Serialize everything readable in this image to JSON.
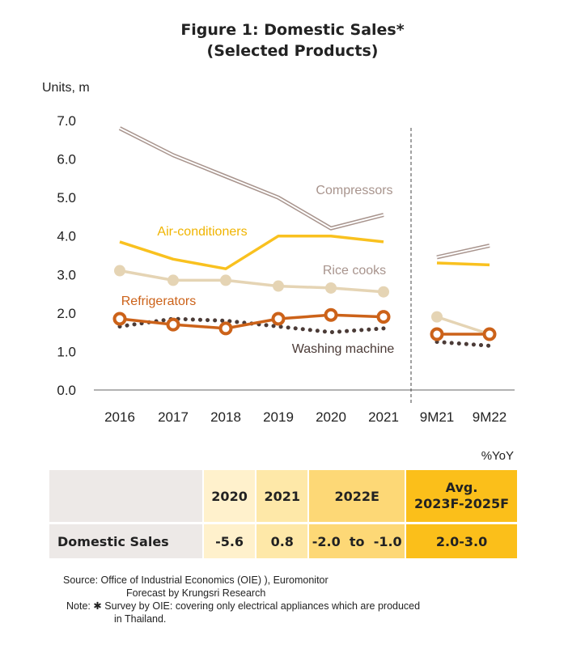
{
  "title_line1": "Figure 1: Domestic Sales*",
  "title_line2": "(Selected Products)",
  "colors": {
    "compressors": "#a8948d",
    "air_conditioners": "#f9c11f",
    "rice_cooks": "#e5d4b4",
    "refrigerators": "#cc6219",
    "washing_machine": "#4b3b37",
    "grid": "#555555"
  },
  "chart_data": {
    "type": "line",
    "ylabel": "Units, m",
    "ylim": [
      0,
      7
    ],
    "yticks": [
      "0.0",
      "1.0",
      "2.0",
      "3.0",
      "4.0",
      "5.0",
      "6.0",
      "7.0"
    ],
    "categories": [
      "2016",
      "2017",
      "2018",
      "2019",
      "2020",
      "2021",
      "9M21",
      "9M22"
    ],
    "series": [
      {
        "name": "Compressors",
        "values": [
          6.8,
          6.1,
          5.55,
          5.0,
          4.2,
          4.55,
          3.45,
          3.75
        ]
      },
      {
        "name": "Air-conditioners",
        "values": [
          3.85,
          3.4,
          3.15,
          4.0,
          4.0,
          3.85,
          3.3,
          3.25
        ]
      },
      {
        "name": "Rice cooks",
        "values": [
          3.1,
          2.85,
          2.85,
          2.7,
          2.65,
          2.55,
          1.9,
          1.45
        ]
      },
      {
        "name": "Refrigerators",
        "values": [
          1.85,
          1.7,
          1.6,
          1.85,
          1.95,
          1.9,
          1.45,
          1.45
        ]
      },
      {
        "name": "Washing machine",
        "values": [
          1.65,
          1.85,
          1.8,
          1.65,
          1.5,
          1.6,
          1.25,
          1.15
        ]
      }
    ]
  },
  "table": {
    "yoy_label": "%YoY",
    "headers": [
      "2020",
      "2021",
      "2022E",
      "Avg.",
      "2023F-2025F"
    ],
    "row_label": "Domestic Sales",
    "values": [
      "-5.6",
      "0.8",
      "-2.0  to  -1.0",
      "2.0-3.0"
    ]
  },
  "notes": {
    "source": "Source: Office of Industrial Economics (OIE) ), Euromonitor",
    "forecast": "Forecast by  Krungsri Research",
    "note": "Note: ✱ Survey by  OIE: covering only  electrical appliances which are produced",
    "note_cont": "in Thailand."
  }
}
